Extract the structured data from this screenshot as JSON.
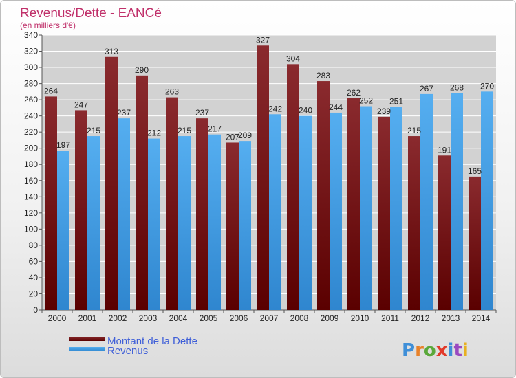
{
  "chart_data": {
    "type": "bar",
    "title": "Revenus/Dette - EANCé",
    "subtitle": "(en milliers d'€)",
    "categories": [
      "2000",
      "2001",
      "2002",
      "2003",
      "2004",
      "2005",
      "2006",
      "2007",
      "2008",
      "2009",
      "2010",
      "2011",
      "2012",
      "2013",
      "2014"
    ],
    "series": [
      {
        "name": "Montant de la Dette",
        "color": "#7a1a1e",
        "values": [
          264,
          247,
          313,
          290,
          263,
          237,
          207,
          327,
          304,
          283,
          262,
          239,
          215,
          191,
          165
        ]
      },
      {
        "name": "Revenus",
        "color": "#3f9de3",
        "values": [
          197,
          215,
          237,
          212,
          215,
          217,
          209,
          242,
          240,
          244,
          252,
          251,
          267,
          268,
          270
        ]
      }
    ],
    "ylim": [
      0,
      340
    ],
    "ytick_step": 20,
    "grid": true,
    "legend_position": "bottom-left"
  },
  "colors": {
    "title": "#c0306a",
    "legend_text": "#3f5fd8",
    "plot_background": "#d2d2d2",
    "grid": "#ffffff"
  },
  "logo": {
    "text": "Proxiti"
  }
}
